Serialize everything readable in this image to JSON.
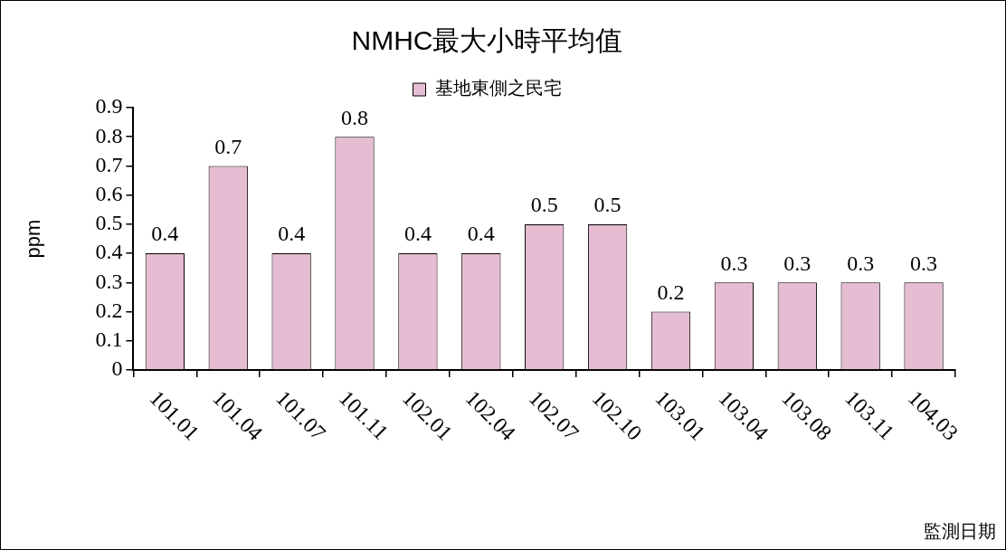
{
  "chart_data": {
    "type": "bar",
    "title": "NMHC最大小時平均值",
    "xlabel": "監測日期",
    "ylabel": "ppm",
    "categories": [
      "101.01",
      "101.04",
      "101.07",
      "101.11",
      "102.01",
      "102.04",
      "102.07",
      "102.10",
      "103.01",
      "103.04",
      "103.08",
      "103.11",
      "104.03"
    ],
    "series": [
      {
        "name": "基地東側之民宅",
        "color": "#e6bcd2",
        "values": [
          0.4,
          0.7,
          0.4,
          0.8,
          0.4,
          0.4,
          0.5,
          0.5,
          0.2,
          0.3,
          0.3,
          0.3,
          0.3
        ]
      }
    ],
    "ylim": [
      0,
      0.9
    ],
    "yticks": [
      0,
      0.1,
      0.2,
      0.3,
      0.4,
      0.5,
      0.6,
      0.7,
      0.8,
      0.9
    ],
    "data_labels": true,
    "legend": "top",
    "grid": false
  }
}
